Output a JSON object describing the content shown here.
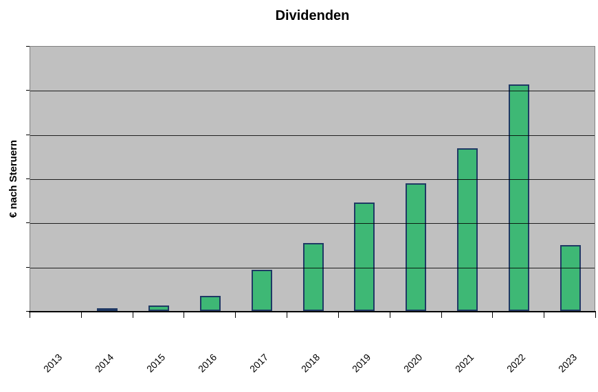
{
  "chart_data": {
    "type": "bar",
    "title": "Dividenden",
    "xlabel": "",
    "ylabel": "€ nach Steruern",
    "categories": [
      "2013",
      "2014",
      "2015",
      "2016",
      "2017",
      "2018",
      "2019",
      "2020",
      "2021",
      "2022",
      "2023"
    ],
    "values": [
      0,
      0.03,
      0.12,
      0.34,
      0.93,
      1.54,
      2.46,
      2.89,
      3.69,
      5.13,
      1.49
    ],
    "ylim": [
      0,
      6
    ],
    "y_gridline_step": 1,
    "y_tick_labels_visible": false,
    "x_label_rotation_deg": 45,
    "grid": "horizontal",
    "legend": "none",
    "style": {
      "plot_background": "#c0c0c0",
      "gridline_color": "#000000",
      "axis_color": "#000000",
      "plot_border_color": "#808080",
      "bar_fill": "#3eb875",
      "bar_border": "#1f3864",
      "text_color": "#000000",
      "page_background": "#ffffff"
    }
  }
}
